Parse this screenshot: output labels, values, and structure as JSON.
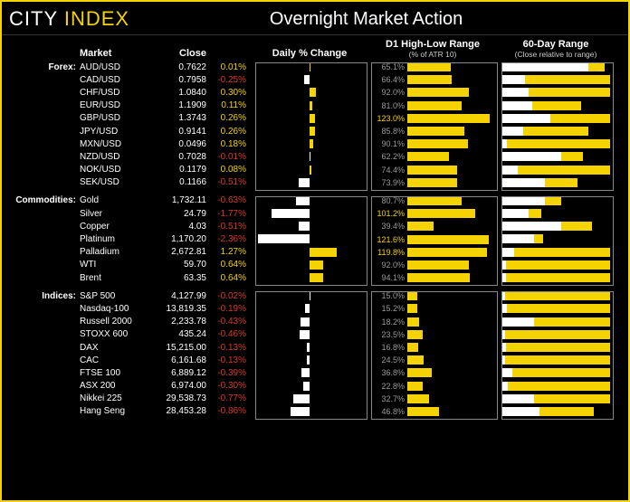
{
  "logo": {
    "left": "CITY",
    "right": " INDEX"
  },
  "title": "Overnight Market Action",
  "columns": {
    "market": "Market",
    "close": "Close",
    "daily": "Daily % Change",
    "d1": "D1 High-Low Range",
    "d1_sub": "(% of ATR 10)",
    "r60": "60-Day Range",
    "r60_sub": "(Close relative to range)"
  },
  "colors": {
    "pos": "#f5d300",
    "neg": "#d93a2b",
    "bar_pos": "#f5d300",
    "bar_neg": "#ffffff",
    "d1_normal": "#999999",
    "d1_high": "#f5d300"
  },
  "daily_scale": 2.5,
  "groups": [
    {
      "category": "Forex:",
      "rows": [
        {
          "m": "AUD/USD",
          "close": "0.7622",
          "pct": 0.01,
          "d1": 65.1,
          "r60l": 80,
          "r60r": 15
        },
        {
          "m": "CAD/USD",
          "close": "0.7958",
          "pct": -0.25,
          "d1": 66.4,
          "r60l": 22,
          "r60r": 78
        },
        {
          "m": "CHF/USD",
          "close": "1.0840",
          "pct": 0.3,
          "d1": 92.0,
          "r60l": 25,
          "r60r": 75
        },
        {
          "m": "EUR/USD",
          "close": "1.1909",
          "pct": 0.11,
          "d1": 81.0,
          "r60l": 28,
          "r60r": 45
        },
        {
          "m": "GBP/USD",
          "close": "1.3743",
          "pct": 0.26,
          "d1": 123.0,
          "r60l": 45,
          "r60r": 55
        },
        {
          "m": "JPY/USD",
          "close": "0.9141",
          "pct": 0.26,
          "d1": 85.8,
          "r60l": 20,
          "r60r": 60
        },
        {
          "m": "MXN/USD",
          "close": "0.0496",
          "pct": 0.18,
          "d1": 90.1,
          "r60l": 5,
          "r60r": 95
        },
        {
          "m": "NZD/USD",
          "close": "0.7028",
          "pct": -0.01,
          "d1": 62.2,
          "r60l": 55,
          "r60r": 20
        },
        {
          "m": "NOK/USD",
          "close": "0.1179",
          "pct": 0.08,
          "d1": 74.4,
          "r60l": 15,
          "r60r": 85
        },
        {
          "m": "SEK/USD",
          "close": "0.1166",
          "pct": -0.51,
          "d1": 73.9,
          "r60l": 40,
          "r60r": 30
        }
      ]
    },
    {
      "category": "Commodities:",
      "rows": [
        {
          "m": "Gold",
          "close": "1,732.11",
          "pct": -0.63,
          "d1": 80.7,
          "r60l": 40,
          "r60r": 15
        },
        {
          "m": "Silver",
          "close": "24.79",
          "pct": -1.77,
          "d1": 101.2,
          "r60l": 25,
          "r60r": 12
        },
        {
          "m": "Copper",
          "close": "4.03",
          "pct": -0.51,
          "d1": 39.4,
          "r60l": 55,
          "r60r": 28
        },
        {
          "m": "Platinum",
          "close": "1,170.20",
          "pct": -2.36,
          "d1": 121.6,
          "r60l": 30,
          "r60r": 8
        },
        {
          "m": "Palladium",
          "close": "2,672.81",
          "pct": 1.27,
          "d1": 119.8,
          "r60l": 12,
          "r60r": 88
        },
        {
          "m": "WTI",
          "close": "59.70",
          "pct": 0.64,
          "d1": 92.0,
          "r60l": 4,
          "r60r": 96
        },
        {
          "m": "Brent",
          "close": "63.35",
          "pct": 0.64,
          "d1": 94.1,
          "r60l": 4,
          "r60r": 96
        }
      ]
    },
    {
      "category": "Indices:",
      "rows": [
        {
          "m": "S&P 500",
          "close": "4,127.99",
          "pct": -0.02,
          "d1": 15.0,
          "r60l": 3,
          "r60r": 97
        },
        {
          "m": "Nasdaq-100",
          "close": "13,819.35",
          "pct": -0.19,
          "d1": 15.2,
          "r60l": 5,
          "r60r": 95
        },
        {
          "m": "Russell 2000",
          "close": "2,233.78",
          "pct": -0.43,
          "d1": 18.2,
          "r60l": 30,
          "r60r": 70
        },
        {
          "m": "STOXX 600",
          "close": "435.24",
          "pct": -0.46,
          "d1": 23.5,
          "r60l": 3,
          "r60r": 97
        },
        {
          "m": "DAX",
          "close": "15,215.00",
          "pct": -0.13,
          "d1": 16.8,
          "r60l": 4,
          "r60r": 96
        },
        {
          "m": "CAC",
          "close": "6,161.68",
          "pct": -0.13,
          "d1": 24.5,
          "r60l": 3,
          "r60r": 97
        },
        {
          "m": "FTSE 100",
          "close": "6,889.12",
          "pct": -0.39,
          "d1": 36.8,
          "r60l": 10,
          "r60r": 90
        },
        {
          "m": "ASX 200",
          "close": "6,974.00",
          "pct": -0.3,
          "d1": 22.8,
          "r60l": 6,
          "r60r": 94
        },
        {
          "m": "Nikkei 225",
          "close": "29,538.73",
          "pct": -0.77,
          "d1": 32.7,
          "r60l": 30,
          "r60r": 70
        },
        {
          "m": "Hang Seng",
          "close": "28,453.28",
          "pct": -0.86,
          "d1": 46.8,
          "r60l": 35,
          "r60r": 50
        }
      ]
    }
  ]
}
